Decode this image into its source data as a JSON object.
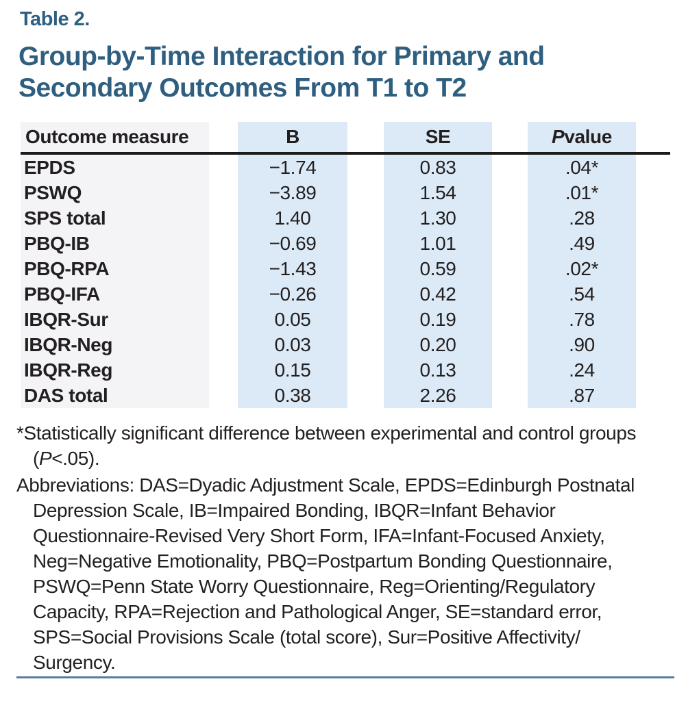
{
  "page": {
    "table_label": "Table 2.",
    "title_lines": [
      "Group-by-Time Interaction for Primary and",
      "Secondary Outcomes From T1 to T2"
    ]
  },
  "table": {
    "header": {
      "outcome": "Outcome measure",
      "b": "B",
      "se": "SE",
      "p_italic": "P",
      "p_rest": " value"
    },
    "rows": [
      {
        "measure": "EPDS",
        "b": "−1.74",
        "se": "0.83",
        "p": ".04*"
      },
      {
        "measure": "PSWQ",
        "b": "−3.89",
        "se": "1.54",
        "p": ".01*"
      },
      {
        "measure": "SPS total",
        "b": "1.40",
        "se": "1.30",
        "p": ".28"
      },
      {
        "measure": "PBQ-IB",
        "b": "−0.69",
        "se": "1.01",
        "p": ".49"
      },
      {
        "measure": "PBQ-RPA",
        "b": "−1.43",
        "se": "0.59",
        "p": ".02*"
      },
      {
        "measure": "PBQ-IFA",
        "b": "−0.26",
        "se": "0.42",
        "p": ".54"
      },
      {
        "measure": "IBQR-Sur",
        "b": "0.05",
        "se": "0.19",
        "p": ".78"
      },
      {
        "measure": "IBQR-Neg",
        "b": "0.03",
        "se": "0.20",
        "p": ".90"
      },
      {
        "measure": "IBQR-Reg",
        "b": "0.15",
        "se": "0.13",
        "p": ".24"
      },
      {
        "measure": "DAS total",
        "b": "0.38",
        "se": "2.26",
        "p": ".87"
      }
    ]
  },
  "footnotes": {
    "significance": {
      "line1": "*Statistically significant difference between experimental and control groups",
      "line2_pre": "(",
      "line2_italic": "P",
      "line2_post": "<.05)."
    },
    "abbreviations_lines": [
      "Abbreviations: DAS=Dyadic Adjustment Scale, EPDS=Edinburgh Postnatal",
      "Depression Scale, IB=Impaired Bonding, IBQR=Infant Behavior",
      "Questionnaire-Revised Very Short Form, IFA=Infant-Focused Anxiety,",
      "Neg=Negative Emotionality, PBQ=Postpartum Bonding Questionnaire,",
      "PSWQ=Penn State Worry Questionnaire, Reg=Orienting/Regulatory",
      "Capacity, RPA=Rejection and Pathological Anger, SE=standard error,",
      "SPS=Social Provisions Scale (total score), Sur=Positive Affectivity/",
      "Surgency."
    ]
  },
  "colors": {
    "title_blue": "#2f5f80",
    "band_blue": "#dbeaf6",
    "band_gray": "#f4f4f7",
    "text_black": "#231f20",
    "header_rule": "#1a1a1a",
    "bottom_rule": "#567c9e"
  }
}
